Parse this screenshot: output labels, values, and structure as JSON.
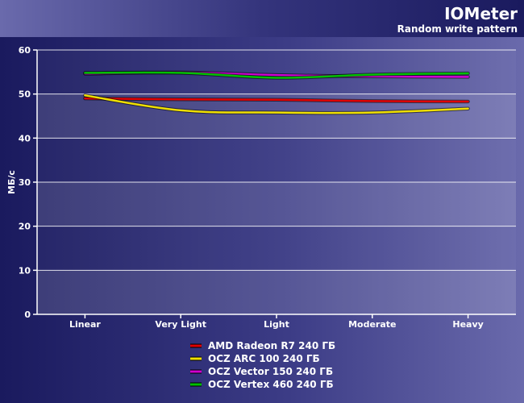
{
  "chart_data": {
    "type": "line",
    "title": "IOMeter",
    "subtitle": "Random write pattern",
    "xlabel": "",
    "ylabel": "МБ/с",
    "categories": [
      "Linear",
      "Very Light",
      "Light",
      "Moderate",
      "Heavy"
    ],
    "ylim": [
      0,
      60
    ],
    "yticks": [
      0,
      10,
      20,
      30,
      40,
      50,
      60
    ],
    "grid": "horizontal",
    "legend_position": "bottom",
    "series": [
      {
        "name": "AMD Radeon R7 240 ГБ",
        "color": "#e00000",
        "values": [
          49.0,
          48.8,
          48.7,
          48.4,
          48.3
        ]
      },
      {
        "name": "OCZ ARC 100 240 ГБ",
        "color": "#f0e000",
        "values": [
          49.7,
          46.3,
          45.8,
          45.8,
          46.7
        ]
      },
      {
        "name": "OCZ Vector 150 240 ГБ",
        "color": "#d000d0",
        "values": [
          54.6,
          54.9,
          54.3,
          54.0,
          53.9
        ]
      },
      {
        "name": "OCZ Vertex 460 240 ГБ",
        "color": "#00c000",
        "values": [
          54.8,
          54.8,
          53.7,
          54.4,
          54.7
        ]
      }
    ]
  }
}
